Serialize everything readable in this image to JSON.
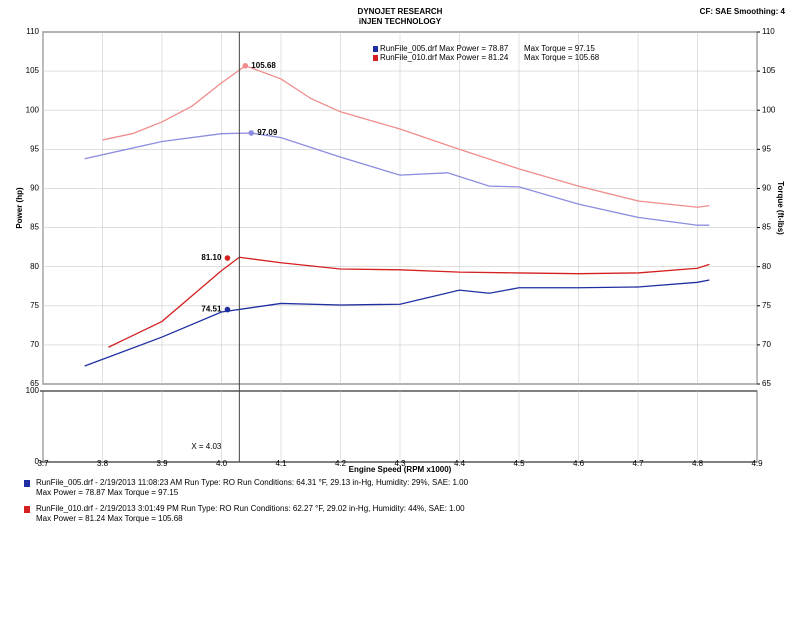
{
  "chart_data": {
    "type": "line",
    "title": "DYNOJET RESEARCH",
    "subtitle": "iNJEN TECHNOLOGY",
    "header_right": "CF: SAE  Smoothing: 4",
    "xlabel": "Engine Speed (RPM x1000)",
    "ylabel": "Power (hp)",
    "y2label": "Torque (ft-lbs)",
    "xlim": [
      3.7,
      4.9
    ],
    "xticks": [
      3.7,
      3.8,
      3.9,
      {
        "value": 4,
        "label": "4.0"
      },
      4.1,
      4.2,
      4.3,
      4.4,
      4.5,
      4.6,
      4.7,
      4.8,
      4.9
    ],
    "ylim": [
      65,
      110
    ],
    "yticks": [
      65,
      70,
      75,
      80,
      85,
      90,
      95,
      100,
      105,
      110
    ],
    "y2lim": [
      65,
      110
    ],
    "y2ticks": [
      65,
      70,
      75,
      80,
      85,
      90,
      95,
      100,
      105,
      110
    ],
    "grid": true,
    "series": [
      {
        "color": "#f08c8c",
        "axis": "y2",
        "x": [
          3.8,
          3.85,
          3.9,
          3.95,
          4.0,
          4.04,
          4.1,
          4.15,
          4.2,
          4.3,
          4.4,
          4.5,
          4.6,
          4.7,
          4.8,
          4.82
        ],
        "values": [
          96.2,
          97,
          98.5,
          100.5,
          103.5,
          105.68,
          104,
          101.5,
          99.8,
          97.6,
          95,
          92.5,
          90.3,
          88.4,
          87.6,
          87.8
        ]
      },
      {
        "color": "#8c8ce0",
        "axis": "y2",
        "x": [
          3.77,
          3.9,
          4.0,
          4.05,
          4.1,
          4.2,
          4.3,
          4.38,
          4.45,
          4.5,
          4.6,
          4.7,
          4.8,
          4.82
        ],
        "values": [
          93.8,
          96,
          97,
          97.09,
          96.5,
          94,
          91.7,
          92,
          90.3,
          90.2,
          88,
          86.3,
          85.3,
          85.3
        ]
      },
      {
        "color": "#d42020",
        "x": [
          3.81,
          3.9,
          4.0,
          4.03,
          4.1,
          4.2,
          4.3,
          4.4,
          4.5,
          4.6,
          4.7,
          4.8,
          4.82
        ],
        "values": [
          69.7,
          73,
          79.5,
          81.2,
          80.5,
          79.7,
          79.6,
          79.3,
          79.2,
          79.1,
          79.2,
          79.8,
          80.3
        ]
      },
      {
        "color": "#1f2ea0",
        "x": [
          3.77,
          3.9,
          4.0,
          4.1,
          4.2,
          4.3,
          4.4,
          4.45,
          4.5,
          4.6,
          4.7,
          4.8,
          4.82
        ],
        "values": [
          67.3,
          71,
          74.2,
          75.3,
          75.1,
          75.2,
          77,
          76.6,
          77.3,
          77.3,
          77.4,
          78,
          78.3
        ]
      }
    ],
    "markers": [
      {
        "x": 4.04,
        "value": 105.68,
        "color": "#f08c8c"
      },
      {
        "x": 4.05,
        "value": 97.09,
        "color": "#8c8ce0"
      },
      {
        "x": 4.01,
        "value": 81.1,
        "value_label": "81.10",
        "color": "#d42020"
      },
      {
        "x": 4.01,
        "value": 74.51,
        "color": "#1f2ea0"
      }
    ],
    "cursor": {
      "x": 4.03,
      "label": "X = 4.03"
    },
    "lower_ylim": [
      0,
      100
    ],
    "lower_yticks": [
      0,
      100
    ],
    "legend": [
      {
        "label": "RunFile_005.drf Max Power = 78.87",
        "torque": "Max Torque = 97.15",
        "color": "#1f2ea0"
      },
      {
        "label": "RunFile_010.drf Max Power = 81.24",
        "torque": "Max Torque = 105.68",
        "color": "#d42020"
      }
    ],
    "runs": [
      {
        "line1": "RunFile_005.drf - 2/19/2013 11:08:23 AM  Run Type: RO  Run Conditions: 64.31 °F, 29.13 in-Hg,  Humidity:  29%, SAE: 1.00",
        "line2": "Max Power = 78.87  Max Torque = 97.15",
        "color": "#1f2ea0"
      },
      {
        "line1": "RunFile_010.drf - 2/19/2013 3:01:49 PM  Run Type: RO  Run Conditions: 62.27 °F, 29.02 in-Hg,  Humidity:  44%, SAE: 1.00",
        "line2": "Max Power = 81.24  Max Torque = 105.68",
        "color": "#d42020"
      }
    ]
  }
}
